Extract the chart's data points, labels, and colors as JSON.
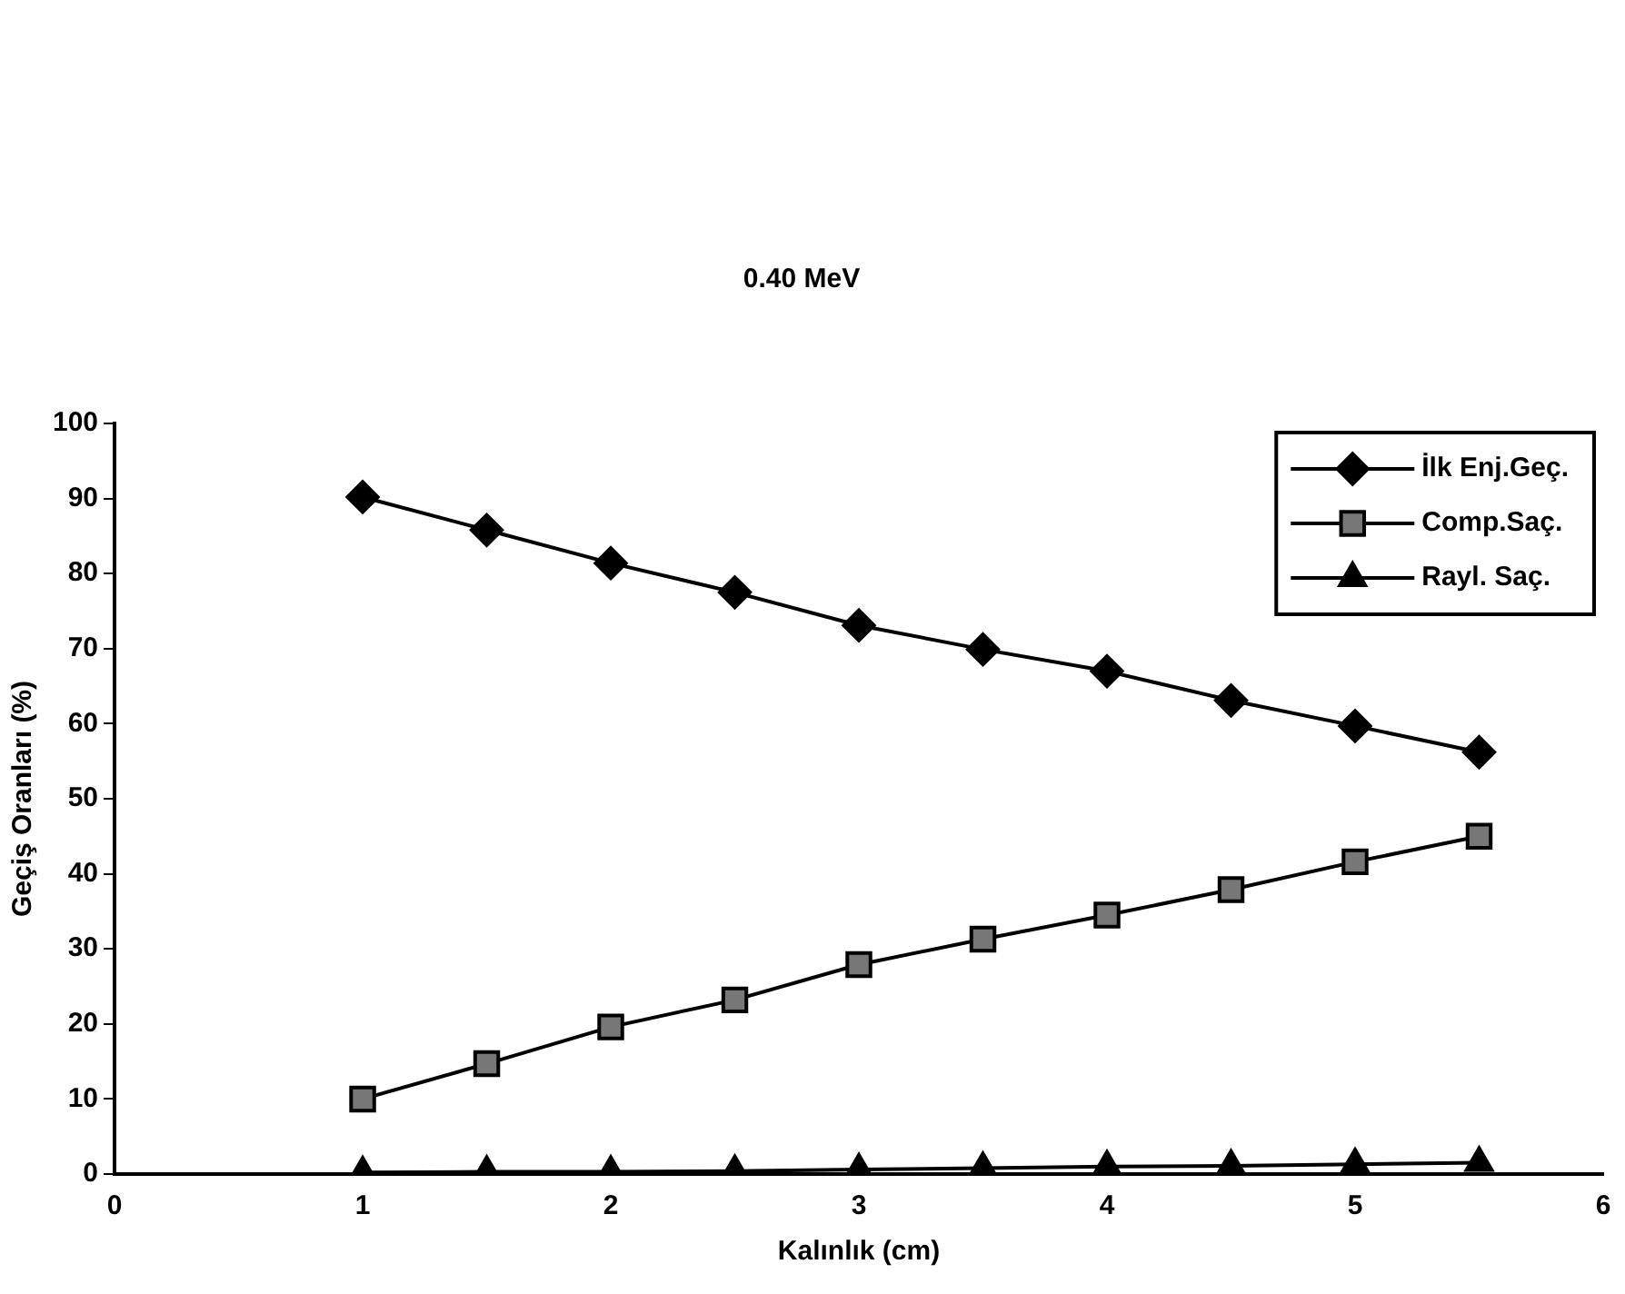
{
  "chart_data": {
    "type": "line",
    "title": "0.40 MeV",
    "xlabel": "Kalınlık (cm)",
    "ylabel": "Geçiş Oranları (%)",
    "x": [
      1,
      1.5,
      2,
      2.5,
      3,
      3.5,
      4,
      4.5,
      5,
      5.5
    ],
    "series": [
      {
        "name": "İlk Enj.Geç.",
        "color": "#000000",
        "marker": "diamond",
        "values": [
          90.2,
          85.8,
          81.4,
          77.5,
          73.1,
          69.9,
          67,
          63.1,
          59.7,
          56.2
        ]
      },
      {
        "name": "Comp.Saç.",
        "color": "#000000",
        "marker": "square",
        "values": [
          10,
          14.7,
          19.6,
          23.2,
          27.9,
          31.3,
          34.5,
          37.9,
          41.6,
          45
        ]
      },
      {
        "name": "Rayl. Saç.",
        "color": "#000000",
        "marker": "triangle",
        "values": [
          0.2,
          0.3,
          0.3,
          0.4,
          0.6,
          0.8,
          1,
          1.1,
          1.3,
          1.5
        ]
      }
    ],
    "xlim": [
      0,
      6
    ],
    "xticks": [
      0,
      1,
      2,
      3,
      4,
      5,
      6
    ],
    "ylim": [
      0,
      100
    ],
    "yticks": [
      0,
      10,
      20,
      30,
      40,
      50,
      60,
      70,
      80,
      90,
      100
    ],
    "grid": false,
    "legend": "top right",
    "line_style": "solid"
  }
}
